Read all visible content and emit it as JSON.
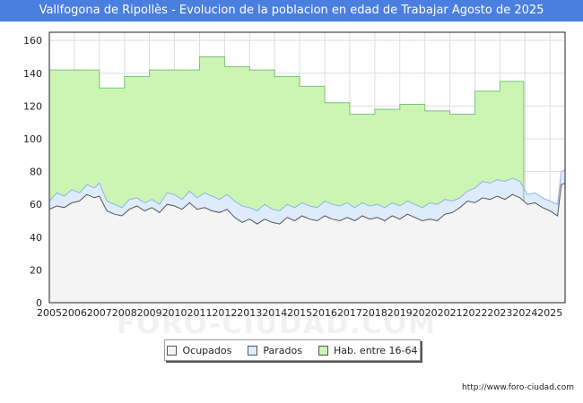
{
  "title": "Vallfogona de Ripollès - Evolucion de la poblacion en edad de Trabajar Agosto de 2025",
  "source": "http://www.foro-ciudad.com",
  "watermark": "FORO-CIUDAD.COM",
  "colors": {
    "title_bg": "#4a7fe0",
    "hab_fill": "#ccf5b3",
    "hab_line": "#7cc07c",
    "parados_fill": "#ddebfb",
    "parados_line": "#8fb4e8",
    "ocupados_fill": "#f4f4f4",
    "ocupados_line": "#555555"
  },
  "chart_data": {
    "type": "area",
    "title": "Vallfogona de Ripollès - Evolucion de la poblacion en edad de Trabajar Agosto de 2025",
    "xlabel": "",
    "ylabel": "",
    "xlim": [
      2005,
      2025.6
    ],
    "ylim": [
      0,
      165
    ],
    "yticks": [
      0,
      20,
      40,
      60,
      80,
      100,
      120,
      140,
      160
    ],
    "x_tick_labels": [
      "2005",
      "2006",
      "2007",
      "2008",
      "2009",
      "2010",
      "2011",
      "2012",
      "2013",
      "2014",
      "2015",
      "2016",
      "2017",
      "2018",
      "2019",
      "2020",
      "2021",
      "2022",
      "2023",
      "2024",
      "2025"
    ],
    "grid": true,
    "legend_position": "bottom",
    "series": [
      {
        "name": "Hab. entre 16-64",
        "style": "step",
        "points": [
          [
            2005.0,
            142
          ],
          [
            2006.0,
            142
          ],
          [
            2007.0,
            131
          ],
          [
            2008.0,
            138
          ],
          [
            2009.0,
            142
          ],
          [
            2010.0,
            142
          ],
          [
            2011.0,
            150
          ],
          [
            2012.0,
            144
          ],
          [
            2013.0,
            142
          ],
          [
            2014.0,
            138
          ],
          [
            2015.0,
            132
          ],
          [
            2016.0,
            122
          ],
          [
            2017.0,
            115
          ],
          [
            2018.0,
            118
          ],
          [
            2019.0,
            121
          ],
          [
            2020.0,
            117
          ],
          [
            2021.0,
            115
          ],
          [
            2022.0,
            129
          ],
          [
            2023.0,
            135
          ],
          [
            2023.95,
            62
          ]
        ]
      },
      {
        "name": "Parados",
        "style": "line",
        "points": [
          [
            2005.0,
            62
          ],
          [
            2005.3,
            67
          ],
          [
            2005.6,
            65
          ],
          [
            2005.9,
            69
          ],
          [
            2006.2,
            67
          ],
          [
            2006.5,
            72
          ],
          [
            2006.8,
            70
          ],
          [
            2007.0,
            73
          ],
          [
            2007.3,
            62
          ],
          [
            2007.6,
            60
          ],
          [
            2007.9,
            58
          ],
          [
            2008.2,
            63
          ],
          [
            2008.5,
            64
          ],
          [
            2008.8,
            61
          ],
          [
            2009.1,
            63
          ],
          [
            2009.4,
            60
          ],
          [
            2009.7,
            67
          ],
          [
            2010.0,
            66
          ],
          [
            2010.3,
            63
          ],
          [
            2010.6,
            68
          ],
          [
            2010.9,
            64
          ],
          [
            2011.2,
            67
          ],
          [
            2011.5,
            65
          ],
          [
            2011.8,
            63
          ],
          [
            2012.1,
            66
          ],
          [
            2012.4,
            62
          ],
          [
            2012.7,
            59
          ],
          [
            2013.0,
            58
          ],
          [
            2013.3,
            56
          ],
          [
            2013.6,
            60
          ],
          [
            2013.9,
            57
          ],
          [
            2014.2,
            56
          ],
          [
            2014.5,
            60
          ],
          [
            2014.8,
            58
          ],
          [
            2015.1,
            61
          ],
          [
            2015.4,
            59
          ],
          [
            2015.7,
            58
          ],
          [
            2016.0,
            62
          ],
          [
            2016.3,
            60
          ],
          [
            2016.6,
            59
          ],
          [
            2016.9,
            61
          ],
          [
            2017.2,
            58
          ],
          [
            2017.5,
            61
          ],
          [
            2017.8,
            59
          ],
          [
            2018.1,
            60
          ],
          [
            2018.4,
            58
          ],
          [
            2018.7,
            61
          ],
          [
            2019.0,
            59
          ],
          [
            2019.3,
            62
          ],
          [
            2019.6,
            60
          ],
          [
            2019.9,
            58
          ],
          [
            2020.2,
            61
          ],
          [
            2020.5,
            60
          ],
          [
            2020.8,
            63
          ],
          [
            2021.1,
            62
          ],
          [
            2021.4,
            64
          ],
          [
            2021.7,
            68
          ],
          [
            2022.0,
            70
          ],
          [
            2022.3,
            74
          ],
          [
            2022.6,
            73
          ],
          [
            2022.9,
            75
          ],
          [
            2023.2,
            74
          ],
          [
            2023.5,
            76
          ],
          [
            2023.8,
            74
          ],
          [
            2024.1,
            66
          ],
          [
            2024.4,
            67
          ],
          [
            2024.7,
            64
          ],
          [
            2025.0,
            62
          ],
          [
            2025.3,
            60
          ],
          [
            2025.45,
            80
          ],
          [
            2025.6,
            81
          ]
        ]
      },
      {
        "name": "Ocupados",
        "style": "line",
        "points": [
          [
            2005.0,
            57
          ],
          [
            2005.3,
            59
          ],
          [
            2005.6,
            58
          ],
          [
            2005.9,
            61
          ],
          [
            2006.2,
            62
          ],
          [
            2006.5,
            66
          ],
          [
            2006.8,
            64
          ],
          [
            2007.0,
            65
          ],
          [
            2007.3,
            56
          ],
          [
            2007.6,
            54
          ],
          [
            2007.9,
            53
          ],
          [
            2008.2,
            57
          ],
          [
            2008.5,
            59
          ],
          [
            2008.8,
            56
          ],
          [
            2009.1,
            58
          ],
          [
            2009.4,
            55
          ],
          [
            2009.7,
            60
          ],
          [
            2010.0,
            59
          ],
          [
            2010.3,
            57
          ],
          [
            2010.6,
            61
          ],
          [
            2010.9,
            57
          ],
          [
            2011.2,
            58
          ],
          [
            2011.5,
            56
          ],
          [
            2011.8,
            55
          ],
          [
            2012.1,
            57
          ],
          [
            2012.4,
            52
          ],
          [
            2012.7,
            49
          ],
          [
            2013.0,
            51
          ],
          [
            2013.3,
            48
          ],
          [
            2013.6,
            51
          ],
          [
            2013.9,
            49
          ],
          [
            2014.2,
            48
          ],
          [
            2014.5,
            52
          ],
          [
            2014.8,
            50
          ],
          [
            2015.1,
            53
          ],
          [
            2015.4,
            51
          ],
          [
            2015.7,
            50
          ],
          [
            2016.0,
            53
          ],
          [
            2016.3,
            51
          ],
          [
            2016.6,
            50
          ],
          [
            2016.9,
            52
          ],
          [
            2017.2,
            50
          ],
          [
            2017.5,
            53
          ],
          [
            2017.8,
            51
          ],
          [
            2018.1,
            52
          ],
          [
            2018.4,
            50
          ],
          [
            2018.7,
            53
          ],
          [
            2019.0,
            51
          ],
          [
            2019.3,
            54
          ],
          [
            2019.6,
            52
          ],
          [
            2019.9,
            50
          ],
          [
            2020.2,
            51
          ],
          [
            2020.5,
            50
          ],
          [
            2020.8,
            54
          ],
          [
            2021.1,
            55
          ],
          [
            2021.4,
            58
          ],
          [
            2021.7,
            62
          ],
          [
            2022.0,
            61
          ],
          [
            2022.3,
            64
          ],
          [
            2022.6,
            63
          ],
          [
            2022.9,
            65
          ],
          [
            2023.2,
            63
          ],
          [
            2023.5,
            66
          ],
          [
            2023.8,
            64
          ],
          [
            2024.1,
            60
          ],
          [
            2024.4,
            61
          ],
          [
            2024.7,
            58
          ],
          [
            2025.0,
            56
          ],
          [
            2025.3,
            53
          ],
          [
            2025.45,
            72
          ],
          [
            2025.6,
            73
          ]
        ]
      }
    ]
  },
  "legend": {
    "ocupados": "Ocupados",
    "parados": "Parados",
    "hab": "Hab. entre 16-64"
  }
}
